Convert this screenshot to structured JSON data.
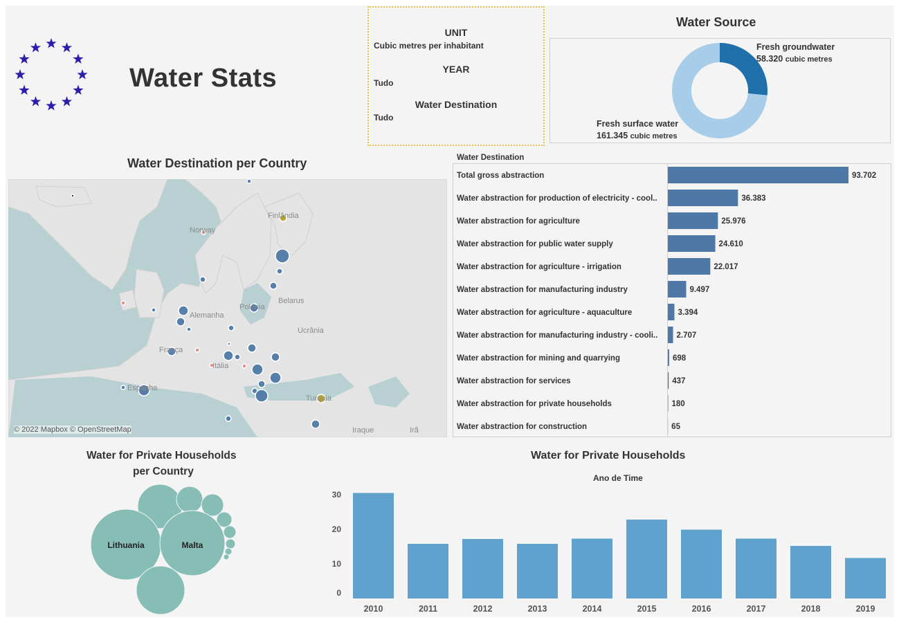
{
  "header": {
    "title": "Water Stats"
  },
  "filters": {
    "unit_label": "UNIT",
    "unit_value": "Cubic metres per inhabitant",
    "year_label": "YEAR",
    "year_value": "Tudo",
    "dest_label": "Water Destination",
    "dest_value": "Tudo"
  },
  "colors": {
    "bar": "#4e79a7",
    "bar_light": "#5fa2cd",
    "groundwater": "#1f6faa",
    "surface": "#a8cde8",
    "bubble": "#86bdb5",
    "flag_star": "#2a1eaa"
  },
  "source": {
    "title": "Water Source",
    "ground_label": "Fresh groundwater",
    "ground_value": "58.320",
    "ground_unit": "cubic metres",
    "surface_label": "Fresh surface water",
    "surface_value": "161.345",
    "surface_unit": "cubic metres"
  },
  "map": {
    "title": "Water Destination per Country",
    "attribution": "© 2022 Mapbox © OpenStreetMap",
    "labels": [
      "Norway",
      "Finlândia",
      "Alemanha",
      "Polónia",
      "Belarus",
      "Ucrânia",
      "França",
      "Itália",
      "Espanha",
      "Turquia",
      "Iraque",
      "Irã"
    ]
  },
  "destination": {
    "header": "Water Destination"
  },
  "households_country": {
    "title_line1": "Water for Private Households",
    "title_line2": "per Country",
    "bubble_labels": [
      "Lithuania",
      "Malta"
    ]
  },
  "households_year": {
    "title": "Water for Private Households",
    "axis_title": "Ano de Time"
  },
  "chart_data": [
    {
      "type": "pie",
      "title": "Water Source",
      "categories": [
        "Fresh groundwater",
        "Fresh surface water"
      ],
      "values": [
        58320,
        161345
      ]
    },
    {
      "type": "bar",
      "orientation": "horizontal",
      "title": "Water Destination",
      "categories": [
        "Total gross abstraction",
        "Water abstraction for production of electricity - cool..",
        "Water abstraction for agriculture",
        "Water abstraction for public water supply",
        "Water abstraction for agriculture - irrigation",
        "Water abstraction for manufacturing industry",
        "Water abstraction for agriculture - aquaculture",
        "Water abstraction for manufacturing industry - cooli..",
        "Water abstraction for mining and quarrying",
        "Water abstraction for services",
        "Water abstraction for private households",
        "Water abstraction for construction"
      ],
      "values": [
        93702,
        36383,
        25976,
        24610,
        22017,
        9497,
        3394,
        2707,
        698,
        437,
        180,
        65
      ],
      "value_labels": [
        "93.702",
        "36.383",
        "25.976",
        "24.610",
        "22.017",
        "9.497",
        "3.394",
        "2.707",
        "698",
        "437",
        "180",
        "65"
      ]
    },
    {
      "type": "bar",
      "title": "Water for Private Households",
      "xlabel": "Ano de Time",
      "categories": [
        "2010",
        "2011",
        "2012",
        "2013",
        "2014",
        "2015",
        "2016",
        "2017",
        "2018",
        "2019"
      ],
      "values": [
        30.5,
        15.8,
        17.2,
        15.8,
        17.3,
        22.8,
        19.9,
        17.3,
        15.2,
        11.7
      ],
      "yticks": [
        "0",
        "10",
        "20",
        "30"
      ],
      "ylim": [
        0,
        32
      ]
    }
  ]
}
